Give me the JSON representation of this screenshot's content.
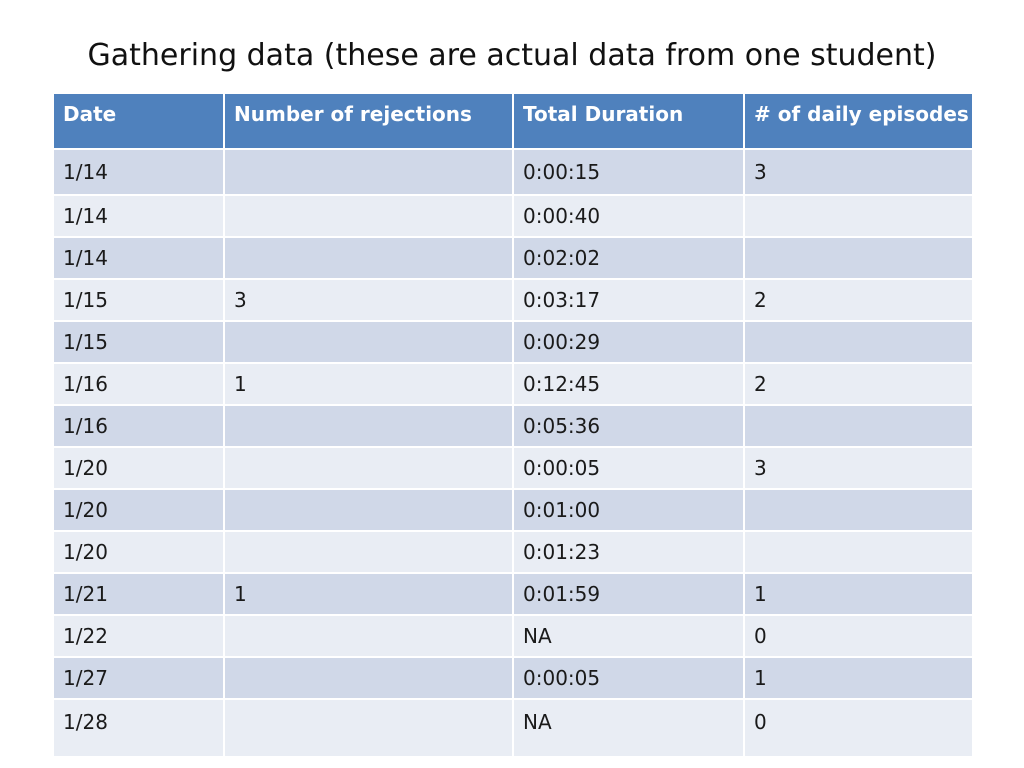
{
  "title": "Gathering data (these are actual data from one student)",
  "table": {
    "headers": [
      "Date",
      "Number of rejections",
      "Total Duration",
      "# of daily episodes"
    ],
    "rows": [
      [
        "1/14",
        "",
        "0:00:15",
        "3"
      ],
      [
        "1/14",
        "",
        "0:00:40",
        ""
      ],
      [
        "1/14",
        "",
        "0:02:02",
        ""
      ],
      [
        "1/15",
        "3",
        "0:03:17",
        "2"
      ],
      [
        "1/15",
        "",
        "0:00:29",
        ""
      ],
      [
        "1/16",
        "1",
        "0:12:45",
        "2"
      ],
      [
        "1/16",
        "",
        "0:05:36",
        ""
      ],
      [
        "1/20",
        "",
        "0:00:05",
        "3"
      ],
      [
        "1/20",
        "",
        "0:01:00",
        ""
      ],
      [
        "1/20",
        "",
        "0:01:23",
        ""
      ],
      [
        "1/21",
        "1",
        "0:01:59",
        "1"
      ],
      [
        "1/22",
        "",
        "NA",
        "0"
      ],
      [
        "1/27",
        "",
        "0:00:05",
        "1"
      ],
      [
        "1/28",
        "",
        "NA",
        "0"
      ]
    ]
  },
  "colors": {
    "header_bg": "#4f81bd",
    "row_odd": "#d0d8e8",
    "row_even": "#e9edf4"
  }
}
